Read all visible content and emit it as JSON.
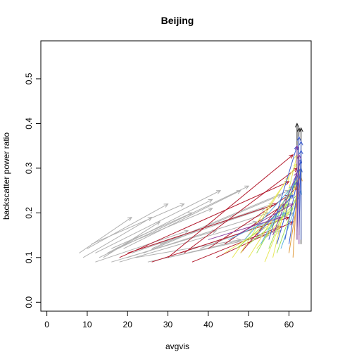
{
  "chart_data": {
    "type": "scatter",
    "title": "Beijing",
    "xlabel": "avgvis",
    "ylabel": "backscatter power ratio",
    "xlim": [
      -1.5,
      65.5
    ],
    "ylim": [
      -0.02,
      0.585
    ],
    "x_ticks": [
      "0",
      "10",
      "20",
      "30",
      "40",
      "50",
      "60"
    ],
    "y_ticks": [
      "0.0",
      "0.1",
      "0.2",
      "0.3",
      "0.4",
      "0.5"
    ],
    "x_tick_values": [
      0,
      10,
      20,
      30,
      40,
      50,
      60
    ],
    "y_tick_values": [
      0.0,
      0.1,
      0.2,
      0.3,
      0.4,
      0.5
    ],
    "grid": false,
    "legend": "none",
    "colors": [
      "#b0b0b0",
      "#b2182b",
      "#e8e85a",
      "#9ee05a",
      "#5ab4e0",
      "#3f5fd0",
      "#8a3fa0",
      "#e09a3a",
      "#202020"
    ],
    "arrows": [
      {
        "x0": 8,
        "y0": 0.11,
        "x1": 21,
        "y1": 0.19,
        "color": "#b0b0b0"
      },
      {
        "x0": 9,
        "y0": 0.1,
        "x1": 26,
        "y1": 0.19,
        "color": "#b0b0b0"
      },
      {
        "x0": 10,
        "y0": 0.12,
        "x1": 30,
        "y1": 0.22,
        "color": "#b0b0b0"
      },
      {
        "x0": 11,
        "y0": 0.13,
        "x1": 34,
        "y1": 0.22,
        "color": "#b0b0b0"
      },
      {
        "x0": 12,
        "y0": 0.11,
        "x1": 43,
        "y1": 0.25,
        "color": "#b0b0b0"
      },
      {
        "x0": 13,
        "y0": 0.1,
        "x1": 50,
        "y1": 0.26,
        "color": "#b0b0b0"
      },
      {
        "x0": 15,
        "y0": 0.11,
        "x1": 41,
        "y1": 0.23,
        "color": "#b0b0b0"
      },
      {
        "x0": 16,
        "y0": 0.12,
        "x1": 36,
        "y1": 0.2,
        "color": "#b0b0b0"
      },
      {
        "x0": 17,
        "y0": 0.12,
        "x1": 41,
        "y1": 0.21,
        "color": "#b0b0b0"
      },
      {
        "x0": 19,
        "y0": 0.12,
        "x1": 48,
        "y1": 0.25,
        "color": "#b0b0b0"
      },
      {
        "x0": 14,
        "y0": 0.1,
        "x1": 28,
        "y1": 0.18,
        "color": "#b0b0b0"
      },
      {
        "x0": 12,
        "y0": 0.09,
        "x1": 35,
        "y1": 0.16,
        "color": "#b0b0b0"
      },
      {
        "x0": 16,
        "y0": 0.09,
        "x1": 42,
        "y1": 0.16,
        "color": "#b0b0b0"
      },
      {
        "x0": 18,
        "y0": 0.09,
        "x1": 52,
        "y1": 0.18,
        "color": "#b0b0b0"
      },
      {
        "x0": 20,
        "y0": 0.1,
        "x1": 55,
        "y1": 0.2,
        "color": "#b0b0b0"
      },
      {
        "x0": 21,
        "y0": 0.11,
        "x1": 56,
        "y1": 0.22,
        "color": "#b0b0b0"
      },
      {
        "x0": 24,
        "y0": 0.11,
        "x1": 58,
        "y1": 0.24,
        "color": "#b0b0b0"
      },
      {
        "x0": 26,
        "y0": 0.12,
        "x1": 60,
        "y1": 0.25,
        "color": "#b0b0b0"
      },
      {
        "x0": 22,
        "y0": 0.1,
        "x1": 48,
        "y1": 0.14,
        "color": "#b0b0b0"
      },
      {
        "x0": 25,
        "y0": 0.09,
        "x1": 55,
        "y1": 0.15,
        "color": "#b0b0b0"
      },
      {
        "x0": 30,
        "y0": 0.1,
        "x1": 58,
        "y1": 0.16,
        "color": "#b0b0b0"
      },
      {
        "x0": 33,
        "y0": 0.11,
        "x1": 60,
        "y1": 0.19,
        "color": "#b0b0b0"
      },
      {
        "x0": 38,
        "y0": 0.12,
        "x1": 61,
        "y1": 0.2,
        "color": "#b0b0b0"
      },
      {
        "x0": 28,
        "y0": 0.13,
        "x1": 54,
        "y1": 0.21,
        "color": "#b0b0b0"
      },
      {
        "x0": 18,
        "y0": 0.1,
        "x1": 60,
        "y1": 0.27,
        "color": "#b2182b"
      },
      {
        "x0": 20,
        "y0": 0.11,
        "x1": 57,
        "y1": 0.22,
        "color": "#b2182b"
      },
      {
        "x0": 26,
        "y0": 0.09,
        "x1": 60,
        "y1": 0.19,
        "color": "#b2182b"
      },
      {
        "x0": 30,
        "y0": 0.1,
        "x1": 61,
        "y1": 0.33,
        "color": "#b2182b"
      },
      {
        "x0": 34,
        "y0": 0.11,
        "x1": 62,
        "y1": 0.3,
        "color": "#b2182b"
      },
      {
        "x0": 40,
        "y0": 0.12,
        "x1": 60,
        "y1": 0.24,
        "color": "#b2182b"
      },
      {
        "x0": 44,
        "y0": 0.13,
        "x1": 59,
        "y1": 0.22,
        "color": "#b2182b"
      },
      {
        "x0": 48,
        "y0": 0.11,
        "x1": 62,
        "y1": 0.26,
        "color": "#b2182b"
      },
      {
        "x0": 36,
        "y0": 0.09,
        "x1": 58,
        "y1": 0.17,
        "color": "#b2182b"
      },
      {
        "x0": 42,
        "y0": 0.1,
        "x1": 61,
        "y1": 0.18,
        "color": "#b2182b"
      },
      {
        "x0": 46,
        "y0": 0.1,
        "x1": 60,
        "y1": 0.28,
        "color": "#e8e85a"
      },
      {
        "x0": 48,
        "y0": 0.11,
        "x1": 62,
        "y1": 0.31,
        "color": "#e8e85a"
      },
      {
        "x0": 50,
        "y0": 0.1,
        "x1": 61,
        "y1": 0.26,
        "color": "#e8e85a"
      },
      {
        "x0": 52,
        "y0": 0.12,
        "x1": 62,
        "y1": 0.23,
        "color": "#e8e85a"
      },
      {
        "x0": 54,
        "y0": 0.09,
        "x1": 63,
        "y1": 0.29,
        "color": "#e8e85a"
      },
      {
        "x0": 44,
        "y0": 0.11,
        "x1": 60,
        "y1": 0.2,
        "color": "#e8e85a"
      },
      {
        "x0": 56,
        "y0": 0.1,
        "x1": 62,
        "y1": 0.33,
        "color": "#e8e85a"
      },
      {
        "x0": 50,
        "y0": 0.13,
        "x1": 61,
        "y1": 0.21,
        "color": "#9ee05a"
      },
      {
        "x0": 52,
        "y0": 0.11,
        "x1": 62,
        "y1": 0.27,
        "color": "#9ee05a"
      },
      {
        "x0": 55,
        "y0": 0.12,
        "x1": 63,
        "y1": 0.3,
        "color": "#9ee05a"
      },
      {
        "x0": 47,
        "y0": 0.12,
        "x1": 60,
        "y1": 0.22,
        "color": "#9ee05a"
      },
      {
        "x0": 57,
        "y0": 0.11,
        "x1": 62,
        "y1": 0.24,
        "color": "#9ee05a"
      },
      {
        "x0": 49,
        "y0": 0.14,
        "x1": 61,
        "y1": 0.26,
        "color": "#5ab4e0"
      },
      {
        "x0": 53,
        "y0": 0.13,
        "x1": 62,
        "y1": 0.28,
        "color": "#5ab4e0"
      },
      {
        "x0": 58,
        "y0": 0.12,
        "x1": 63,
        "y1": 0.25,
        "color": "#5ab4e0"
      },
      {
        "x0": 45,
        "y0": 0.14,
        "x1": 59,
        "y1": 0.2,
        "color": "#5ab4e0"
      },
      {
        "x0": 55,
        "y0": 0.14,
        "x1": 62,
        "y1": 0.35,
        "color": "#3f5fd0"
      },
      {
        "x0": 57,
        "y0": 0.13,
        "x1": 63,
        "y1": 0.32,
        "color": "#3f5fd0"
      },
      {
        "x0": 59,
        "y0": 0.14,
        "x1": 62,
        "y1": 0.27,
        "color": "#3f5fd0"
      },
      {
        "x0": 52,
        "y0": 0.15,
        "x1": 61,
        "y1": 0.24,
        "color": "#3f5fd0"
      },
      {
        "x0": 60,
        "y0": 0.13,
        "x1": 63,
        "y1": 0.3,
        "color": "#3f5fd0"
      },
      {
        "x0": 40,
        "y0": 0.14,
        "x1": 58,
        "y1": 0.19,
        "color": "#8a3fa0"
      },
      {
        "x0": 47,
        "y0": 0.15,
        "x1": 61,
        "y1": 0.22,
        "color": "#8a3fa0"
      },
      {
        "x0": 56,
        "y0": 0.15,
        "x1": 62,
        "y1": 0.29,
        "color": "#8a3fa0"
      },
      {
        "x0": 61,
        "y0": 0.1,
        "x1": 62,
        "y1": 0.26,
        "color": "#e09a3a"
      },
      {
        "x0": 60,
        "y0": 0.11,
        "x1": 63,
        "y1": 0.28,
        "color": "#e09a3a"
      },
      {
        "x0": 62,
        "y0": 0.14,
        "x1": 62,
        "y1": 0.4,
        "color": "#202020"
      },
      {
        "x0": 62,
        "y0": 0.15,
        "x1": 62.5,
        "y1": 0.39,
        "color": "#202020"
      },
      {
        "x0": 63,
        "y0": 0.13,
        "x1": 63,
        "y1": 0.39,
        "color": "#202020"
      },
      {
        "x0": 62,
        "y0": 0.16,
        "x1": 62.5,
        "y1": 0.37,
        "color": "#3f5fd0"
      },
      {
        "x0": 62.5,
        "y0": 0.15,
        "x1": 63,
        "y1": 0.36,
        "color": "#3f5fd0"
      },
      {
        "x0": 63,
        "y0": 0.14,
        "x1": 63,
        "y1": 0.34,
        "color": "#3f5fd0"
      },
      {
        "x0": 62,
        "y0": 0.14,
        "x1": 62,
        "y1": 0.35,
        "color": "#8a3fa0"
      },
      {
        "x0": 62.5,
        "y0": 0.13,
        "x1": 62.5,
        "y1": 0.33,
        "color": "#8a3fa0"
      }
    ]
  }
}
